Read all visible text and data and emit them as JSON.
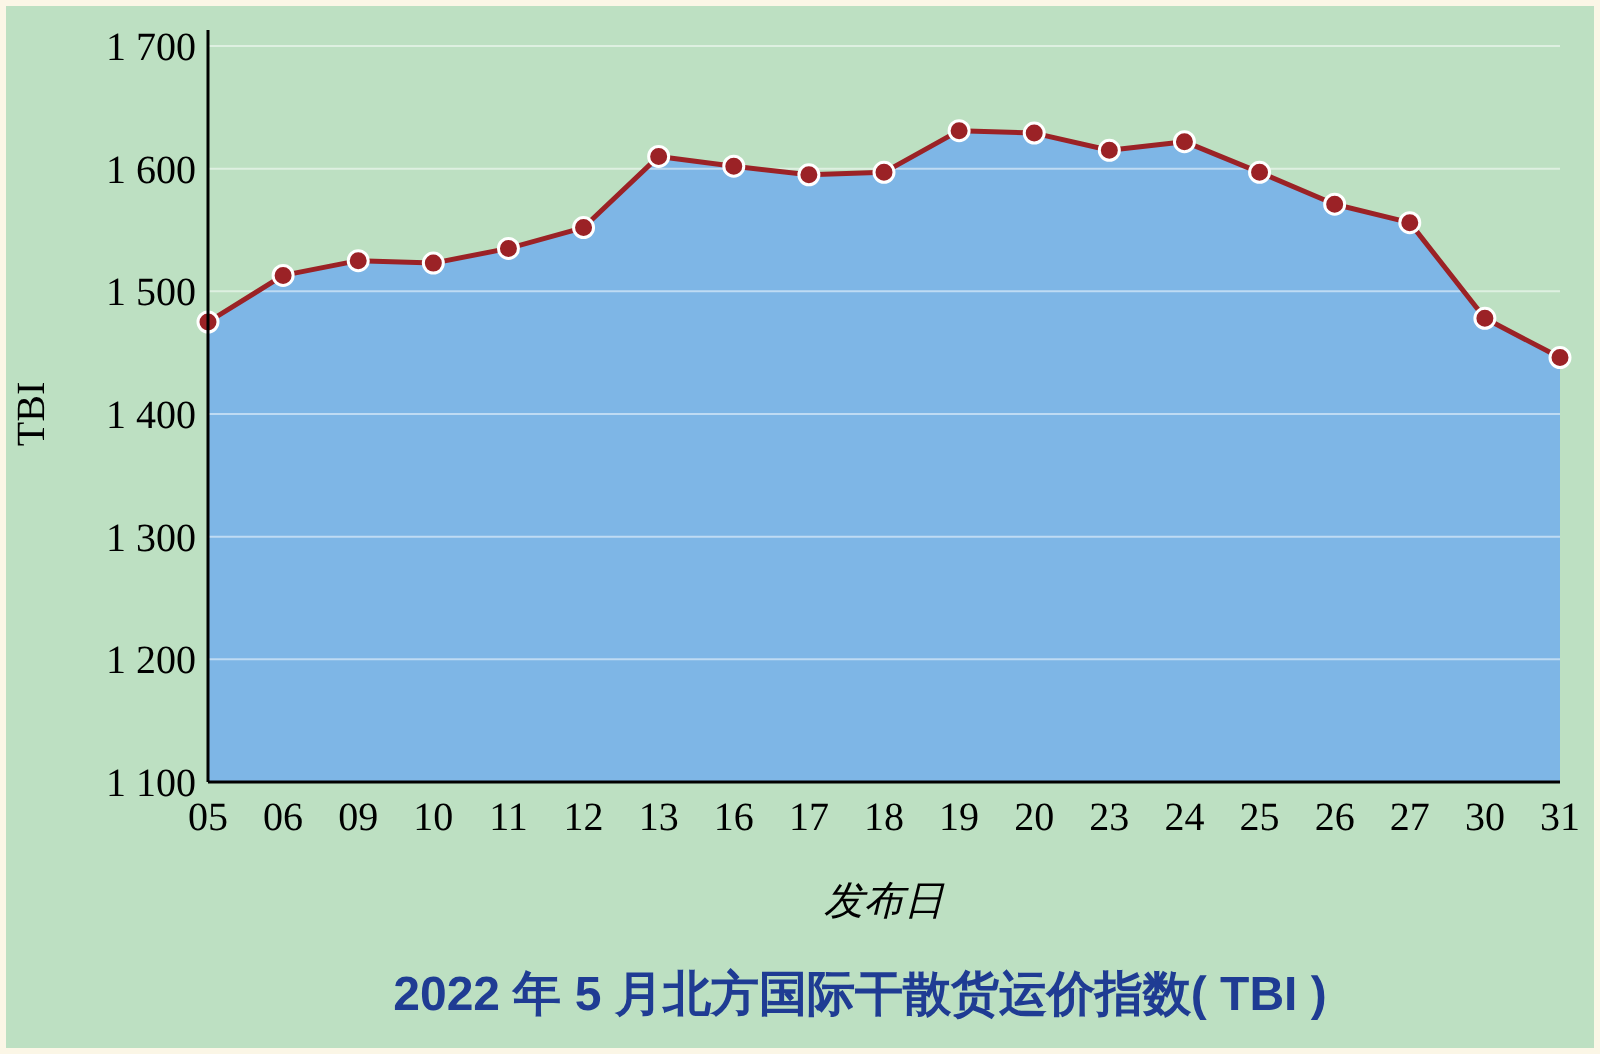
{
  "chart_data": {
    "type": "area",
    "title": "2022 年 5 月北方国际干散货运价指数( TBI )",
    "xlabel": "发布日",
    "ylabel": "TBI",
    "categories": [
      "05",
      "06",
      "09",
      "10",
      "11",
      "12",
      "13",
      "16",
      "17",
      "18",
      "19",
      "20",
      "23",
      "24",
      "25",
      "26",
      "27",
      "30",
      "31"
    ],
    "series": [
      {
        "color": "#7eb6e6",
        "values": [
          1475,
          1513,
          1525,
          1523,
          1535,
          1552,
          1610,
          1602,
          1595,
          1597,
          1631,
          1629,
          1615,
          1622,
          1597,
          1571,
          1556,
          1478,
          1446
        ]
      },
      {
        "type": "line",
        "color": "#9b2226",
        "marker": "circle",
        "values": [
          1475,
          1513,
          1525,
          1523,
          1535,
          1552,
          1610,
          1602,
          1595,
          1597,
          1631,
          1629,
          1615,
          1622,
          1597,
          1571,
          1556,
          1478,
          1446
        ]
      }
    ],
    "ylim": [
      1100,
      1700
    ],
    "yticks": [
      {
        "value": 1100,
        "label": "1 100"
      },
      {
        "value": 1200,
        "label": "1 200"
      },
      {
        "value": 1300,
        "label": "1 300"
      },
      {
        "value": 1400,
        "label": "1 400"
      },
      {
        "value": 1500,
        "label": "1 500"
      },
      {
        "value": 1600,
        "label": "1 600"
      },
      {
        "value": 1700,
        "label": "1 700"
      }
    ],
    "grid": "y",
    "line_style": "solid"
  }
}
